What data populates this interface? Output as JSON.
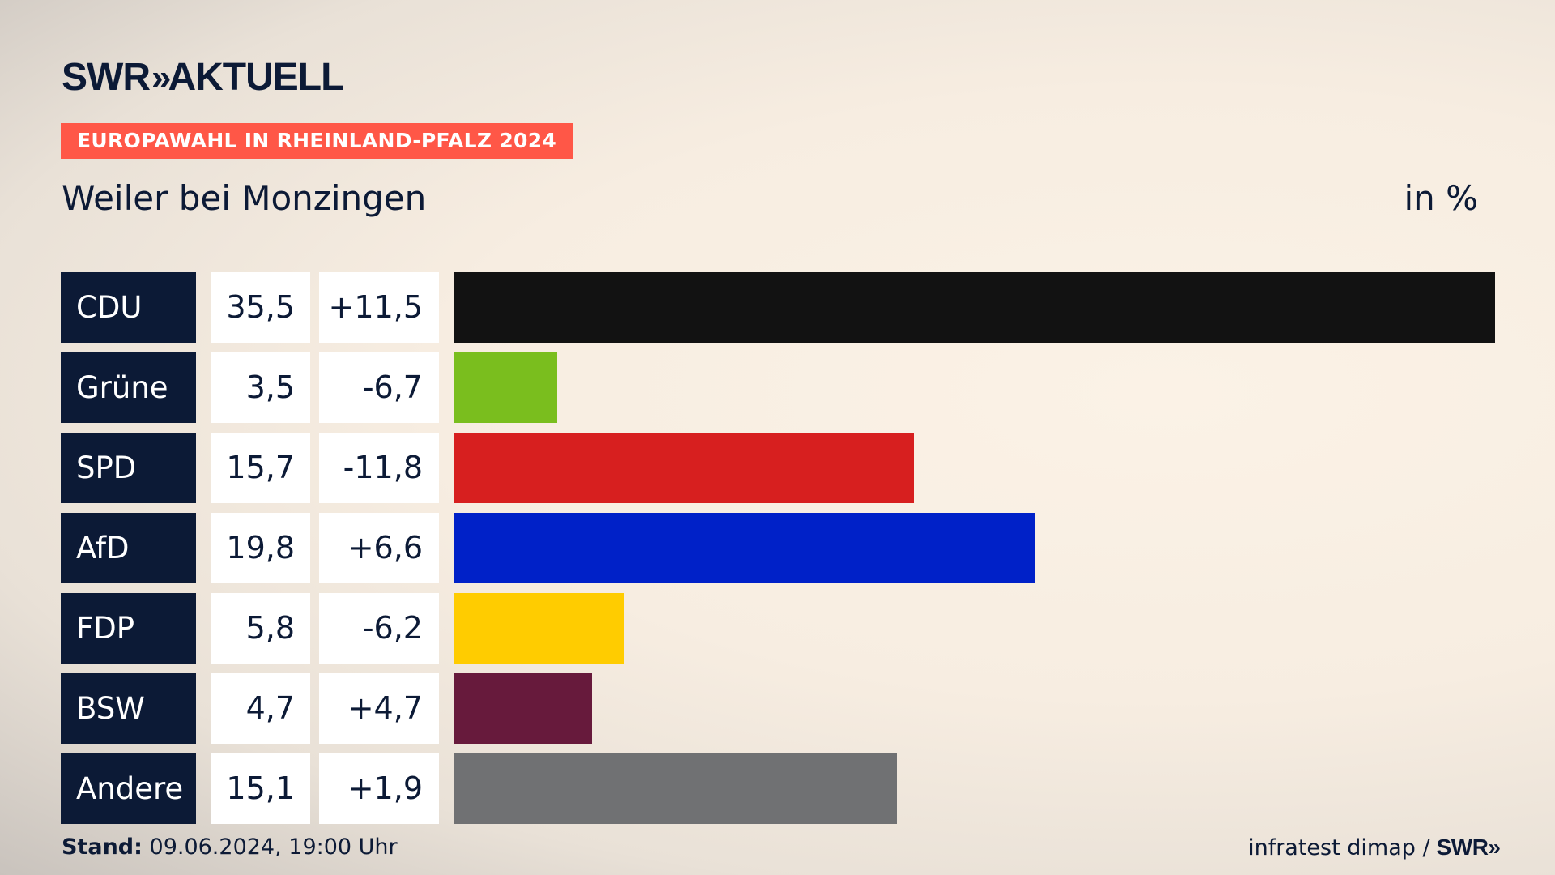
{
  "header": {
    "logo_left": "SWR",
    "logo_chevrons": "»",
    "logo_right": "AKTUELL",
    "tag": "EUROPAWAHL IN RHEINLAND-PFALZ 2024",
    "place": "Weiler bei Monzingen",
    "unit": "in %"
  },
  "footer": {
    "stand_label": "Stand:",
    "stand_value": "09.06.2024, 19:00 Uhr",
    "source": "infratest dimap /",
    "source_logo": "SWR",
    "source_logo_chevrons": "»"
  },
  "chart_data": {
    "type": "bar",
    "orientation": "horizontal",
    "title": "Weiler bei Monzingen",
    "ylabel": "in %",
    "categories": [
      "CDU",
      "Grüne",
      "SPD",
      "AfD",
      "FDP",
      "BSW",
      "Andere"
    ],
    "values": [
      35.5,
      3.5,
      15.7,
      19.8,
      5.8,
      4.7,
      15.1
    ],
    "values_text": [
      "35,5",
      "3,5",
      "15,7",
      "19,8",
      "5,8",
      "4,7",
      "15,1"
    ],
    "diffs": [
      11.5,
      -6.7,
      -11.8,
      6.6,
      -6.2,
      4.7,
      1.9
    ],
    "diffs_text": [
      "+11,5",
      "-6,7",
      "-11,8",
      "+6,6",
      "-6,2",
      "+4,7",
      "+1,9"
    ],
    "colors": [
      "#121212",
      "#7abe1e",
      "#d71f1f",
      "#0021c8",
      "#ffcc00",
      "#671a3c",
      "#707173"
    ],
    "xlim": [
      0,
      35.5
    ]
  }
}
